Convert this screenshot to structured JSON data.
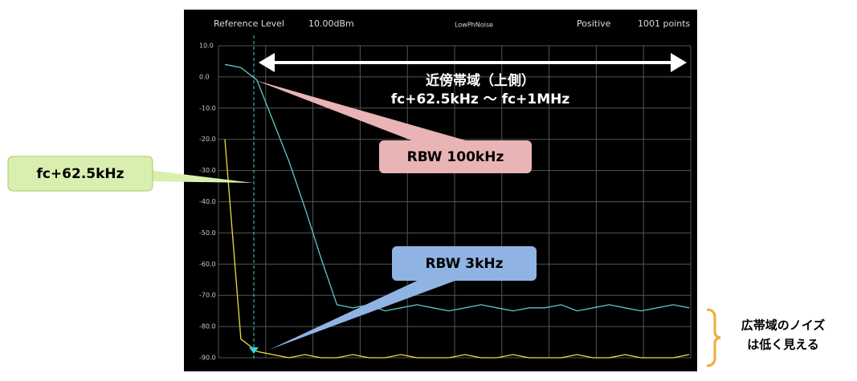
{
  "chart_data": {
    "type": "line",
    "header_texts": [
      "Reference Level",
      "10.00dBm",
      "LowPhNoise",
      "Positive",
      "1001 points"
    ],
    "annotations": [
      "近傍帯域（上側）",
      "fc+62.5kHz ～ fc+1MHz",
      "fc+62.5kHz",
      "RBW 100kHz",
      "RBW 3kHz",
      "広帯域のノイズ",
      "は低く見える"
    ],
    "ylim": [
      10,
      -90
    ],
    "yticks": [
      {
        "value": 10,
        "label": "10.0"
      },
      {
        "value": 0,
        "label": "0.0"
      },
      {
        "value": -10,
        "label": "-10.0"
      },
      {
        "value": -20,
        "label": "-20.0"
      },
      {
        "value": -30,
        "label": "-30.0"
      },
      {
        "value": -40,
        "label": "-40.0"
      },
      {
        "value": -50,
        "label": "-50.0"
      },
      {
        "value": -60,
        "label": "-60.0"
      },
      {
        "value": -70,
        "label": "-70.0"
      },
      {
        "value": -80,
        "label": "-80.0"
      },
      {
        "value": -90,
        "label": "-90.0"
      }
    ],
    "grid": true,
    "series": [
      {
        "color": "#5cc8c8",
        "values": [
          4,
          3,
          -1,
          -14,
          -27,
          -42,
          -58,
          -73,
          -74,
          -73,
          -75,
          -74,
          -73,
          -74,
          -75,
          -74,
          -73,
          -74,
          -75,
          -74,
          -74,
          -73,
          -75,
          -74,
          -73,
          -74,
          -75,
          -74,
          -73,
          -74
        ]
      },
      {
        "color": "#e8e040",
        "values": [
          -20,
          -84,
          -88,
          -89,
          -90,
          -89,
          -90,
          -90,
          -89,
          -90,
          -90,
          -89,
          -90,
          -90,
          -90,
          -89,
          -90,
          -90,
          -89,
          -90,
          -90,
          -90,
          -89,
          -90,
          -90,
          -89,
          -90,
          -90,
          -90,
          -89
        ]
      }
    ]
  }
}
